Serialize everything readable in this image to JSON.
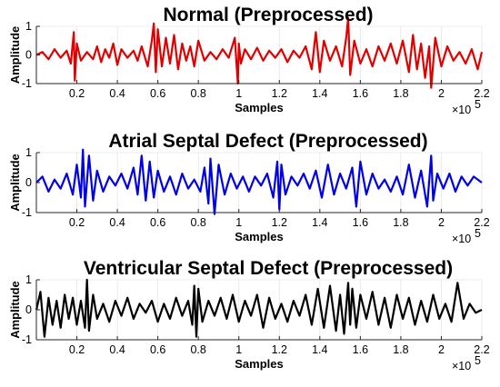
{
  "chart_data": [
    {
      "type": "line",
      "title": "Normal (Preprocessed)",
      "xlabel": "Samples",
      "ylabel": "Amplitude",
      "x_exponent_label": "×10",
      "x_exponent_power": "5",
      "xlim": [
        0,
        2.2
      ],
      "ylim": [
        -1,
        1
      ],
      "xticks": [
        0.2,
        0.4,
        0.6,
        0.8,
        1,
        1.2,
        1.4,
        1.6,
        1.8,
        2,
        2.2
      ],
      "xtick_labels": [
        "0.2",
        "0.4",
        "0.6",
        "0.8",
        "1",
        "1.2",
        "1.4",
        "1.6",
        "1.8",
        "2",
        "2.2"
      ],
      "yticks": [
        -1,
        0,
        1
      ],
      "ytick_labels": [
        "-1",
        "0",
        "1"
      ],
      "grid": true,
      "color": "#e00000",
      "series": [
        {
          "x": [
            0.0,
            0.03,
            0.06,
            0.09,
            0.12,
            0.15,
            0.17,
            0.185,
            0.19,
            0.2,
            0.22,
            0.25,
            0.28,
            0.3,
            0.32,
            0.34,
            0.36,
            0.38,
            0.4,
            0.42,
            0.45,
            0.48,
            0.5,
            0.52,
            0.55,
            0.57,
            0.58,
            0.59,
            0.6,
            0.62,
            0.64,
            0.66,
            0.68,
            0.7,
            0.72,
            0.74,
            0.76,
            0.78,
            0.8,
            0.83,
            0.86,
            0.89,
            0.92,
            0.95,
            0.98,
            0.995,
            1.0,
            1.01,
            1.03,
            1.06,
            1.09,
            1.12,
            1.15,
            1.18,
            1.21,
            1.24,
            1.27,
            1.3,
            1.33,
            1.36,
            1.38,
            1.4,
            1.42,
            1.45,
            1.48,
            1.51,
            1.53,
            1.54,
            1.55,
            1.57,
            1.6,
            1.63,
            1.66,
            1.69,
            1.72,
            1.75,
            1.78,
            1.81,
            1.84,
            1.86,
            1.88,
            1.9,
            1.92,
            1.94,
            1.95,
            1.97,
            2.0,
            2.03,
            2.06,
            2.09,
            2.12,
            2.15,
            2.18,
            2.2
          ],
          "y": [
            0,
            0.1,
            -0.15,
            0.2,
            -0.1,
            0.15,
            -0.3,
            0.8,
            -0.9,
            0.4,
            -0.2,
            0.1,
            -0.15,
            0.3,
            -0.25,
            0.2,
            -0.1,
            0.4,
            -0.35,
            0.2,
            -0.1,
            0.15,
            -0.2,
            0.3,
            -0.4,
            0.5,
            1.1,
            -0.6,
            0.9,
            -0.4,
            0.6,
            -0.3,
            0.7,
            -0.5,
            0.4,
            -0.2,
            0.3,
            -0.4,
            0.5,
            -0.2,
            0.1,
            -0.15,
            0.2,
            -0.1,
            0.6,
            -1.0,
            0.4,
            -0.3,
            0.2,
            -0.15,
            0.25,
            -0.2,
            0.15,
            -0.1,
            0.2,
            -0.25,
            0.15,
            -0.1,
            0.3,
            -0.5,
            0.8,
            -0.6,
            0.5,
            -0.2,
            0.3,
            -0.4,
            0.6,
            1.3,
            -0.7,
            0.5,
            -0.3,
            0.2,
            -0.4,
            0.3,
            -0.2,
            0.4,
            -0.3,
            0.5,
            -0.6,
            0.7,
            -0.5,
            0.4,
            -0.8,
            0.3,
            -1.15,
            0.6,
            -0.4,
            0.3,
            -0.2,
            0.1,
            -0.3,
            0.2,
            -0.5,
            0.1
          ]
        }
      ]
    },
    {
      "type": "line",
      "title": "Atrial Septal Defect (Preprocessed)",
      "xlabel": "Samples",
      "ylabel": "Amplitude",
      "x_exponent_label": "×10",
      "x_exponent_power": "5",
      "xlim": [
        0,
        2.2
      ],
      "ylim": [
        -1,
        1
      ],
      "xticks": [
        0.2,
        0.4,
        0.6,
        0.8,
        1,
        1.2,
        1.4,
        1.6,
        1.8,
        2,
        2.2
      ],
      "xtick_labels": [
        "0.2",
        "0.4",
        "0.6",
        "0.8",
        "1",
        "1.2",
        "1.4",
        "1.6",
        "1.8",
        "2",
        "2.2"
      ],
      "yticks": [
        -1,
        0,
        1
      ],
      "ytick_labels": [
        "-1",
        "0",
        "1"
      ],
      "grid": true,
      "color": "#0000e6",
      "series": [
        {
          "x": [
            0.0,
            0.03,
            0.06,
            0.09,
            0.12,
            0.15,
            0.18,
            0.2,
            0.22,
            0.23,
            0.24,
            0.26,
            0.28,
            0.3,
            0.33,
            0.36,
            0.39,
            0.42,
            0.45,
            0.48,
            0.5,
            0.52,
            0.54,
            0.56,
            0.58,
            0.6,
            0.63,
            0.66,
            0.69,
            0.72,
            0.75,
            0.78,
            0.81,
            0.83,
            0.85,
            0.86,
            0.88,
            0.9,
            0.93,
            0.96,
            0.99,
            1.02,
            1.05,
            1.08,
            1.11,
            1.14,
            1.17,
            1.19,
            1.2,
            1.21,
            1.23,
            1.26,
            1.29,
            1.32,
            1.35,
            1.38,
            1.41,
            1.44,
            1.47,
            1.5,
            1.53,
            1.56,
            1.58,
            1.6,
            1.63,
            1.66,
            1.69,
            1.72,
            1.75,
            1.78,
            1.81,
            1.84,
            1.87,
            1.9,
            1.93,
            1.95,
            1.96,
            1.98,
            2.01,
            2.04,
            2.07,
            2.1,
            2.13,
            2.16,
            2.2
          ],
          "y": [
            0,
            0.2,
            -0.3,
            0.1,
            -0.2,
            0.3,
            -0.4,
            0.6,
            -0.5,
            1.1,
            -0.8,
            0.9,
            -0.6,
            0.4,
            -0.3,
            0.2,
            -0.1,
            0.3,
            -0.2,
            0.5,
            -0.4,
            0.9,
            -0.6,
            0.7,
            -0.5,
            0.4,
            -0.3,
            0.2,
            -0.4,
            0.3,
            -0.2,
            0.1,
            -0.3,
            0.5,
            -0.7,
            0.8,
            -1.05,
            0.6,
            -0.4,
            0.3,
            -0.2,
            0.2,
            -0.3,
            0.2,
            -0.1,
            0.3,
            -0.5,
            0.7,
            -0.9,
            0.6,
            -0.4,
            0.2,
            -0.1,
            0.3,
            -0.2,
            0.4,
            -0.5,
            0.6,
            -0.4,
            0.3,
            -0.2,
            0.5,
            -0.8,
            0.7,
            -0.4,
            0.3,
            -0.2,
            0.1,
            -0.3,
            0.2,
            -0.4,
            0.6,
            -0.5,
            0.4,
            -0.8,
            0.9,
            -0.6,
            0.3,
            -0.2,
            0.3,
            -0.3,
            0.2,
            -0.1,
            0.2,
            0
          ]
        }
      ]
    },
    {
      "type": "line",
      "title": "Ventricular Septal Defect (Preprocessed)",
      "xlabel": "Samples",
      "ylabel": "Amplitude",
      "x_exponent_label": "×10",
      "x_exponent_power": "5",
      "xlim": [
        0,
        2.2
      ],
      "ylim": [
        -1,
        1
      ],
      "xticks": [
        0.2,
        0.4,
        0.6,
        0.8,
        1,
        1.2,
        1.4,
        1.6,
        1.8,
        2,
        2.2
      ],
      "xtick_labels": [
        "0.2",
        "0.4",
        "0.6",
        "0.8",
        "1",
        "1.2",
        "1.4",
        "1.6",
        "1.8",
        "2",
        "2.2"
      ],
      "yticks": [
        -1,
        0,
        1
      ],
      "ytick_labels": [
        "-1",
        "0",
        "1"
      ],
      "grid": true,
      "color": "#000000",
      "series": [
        {
          "x": [
            0.0,
            0.02,
            0.04,
            0.06,
            0.08,
            0.1,
            0.12,
            0.14,
            0.16,
            0.18,
            0.2,
            0.22,
            0.24,
            0.25,
            0.26,
            0.28,
            0.3,
            0.33,
            0.36,
            0.39,
            0.42,
            0.45,
            0.48,
            0.51,
            0.54,
            0.57,
            0.6,
            0.63,
            0.66,
            0.69,
            0.72,
            0.75,
            0.77,
            0.78,
            0.79,
            0.8,
            0.82,
            0.85,
            0.88,
            0.91,
            0.94,
            0.97,
            1.0,
            1.03,
            1.06,
            1.09,
            1.12,
            1.15,
            1.18,
            1.21,
            1.24,
            1.27,
            1.3,
            1.33,
            1.36,
            1.39,
            1.42,
            1.45,
            1.48,
            1.5,
            1.52,
            1.54,
            1.55,
            1.56,
            1.58,
            1.6,
            1.63,
            1.66,
            1.69,
            1.72,
            1.75,
            1.78,
            1.81,
            1.84,
            1.87,
            1.9,
            1.93,
            1.96,
            1.99,
            2.02,
            2.05,
            2.08,
            2.11,
            2.14,
            2.17,
            2.2
          ],
          "y": [
            0,
            0.6,
            -0.9,
            0.4,
            -0.5,
            0.3,
            -0.6,
            0.5,
            -0.3,
            0.4,
            -0.5,
            0.3,
            -0.6,
            1.0,
            -0.7,
            0.5,
            -0.3,
            0.2,
            -0.4,
            0.3,
            -0.2,
            0.4,
            -0.3,
            0.2,
            -0.1,
            0.3,
            -0.4,
            0.2,
            -0.3,
            0.4,
            -0.2,
            0.3,
            -0.5,
            0.8,
            -0.9,
            0.7,
            -0.4,
            0.3,
            -0.2,
            0.4,
            -0.3,
            0.5,
            -0.4,
            0.3,
            -0.2,
            0.5,
            -0.6,
            0.4,
            -0.3,
            0.2,
            -0.4,
            0.3,
            -0.2,
            0.5,
            -0.5,
            0.7,
            -0.6,
            0.8,
            -0.7,
            0.5,
            -0.8,
            0.9,
            -0.5,
            0.7,
            -0.6,
            0.5,
            -0.3,
            0.6,
            -0.5,
            0.4,
            -0.6,
            0.5,
            -0.3,
            0.4,
            -0.5,
            0.3,
            -0.4,
            0.5,
            -0.3,
            0.2,
            -0.4,
            0.9,
            -0.3,
            0.2,
            -0.1,
            0
          ]
        }
      ]
    }
  ]
}
